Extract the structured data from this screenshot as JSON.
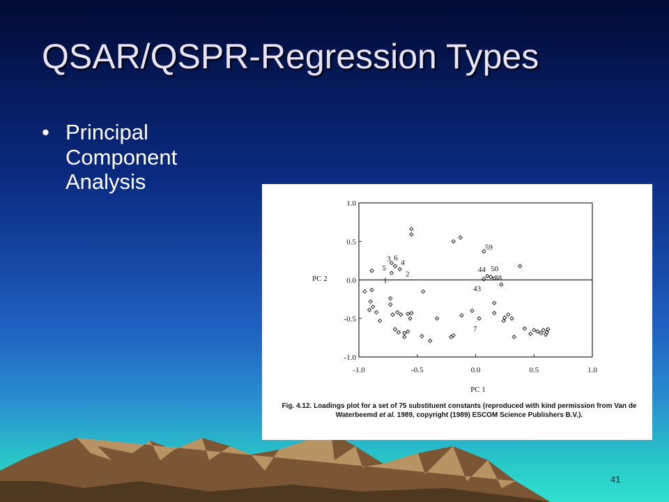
{
  "title": "QSAR/QSPR-Regression Types",
  "bullets": [
    "Principal Component Analysis"
  ],
  "page_number": "41",
  "chart_data": {
    "type": "scatter",
    "xlabel": "PC 1",
    "ylabel": "PC 2",
    "xlim": [
      -1.0,
      1.0
    ],
    "ylim": [
      -1.0,
      1.0
    ],
    "xticks": [
      {
        "value": -1.0,
        "label": "-1.0"
      },
      -0.5,
      {
        "value": 0.0,
        "label": "0.0"
      },
      0.5,
      {
        "value": 1.0,
        "label": "1.0"
      }
    ],
    "yticks": [
      {
        "value": -1.0,
        "label": "-1.0"
      },
      -0.5,
      {
        "value": 0.0,
        "label": "0.0"
      },
      0.5,
      {
        "value": 1.0,
        "label": "1.0"
      }
    ],
    "zero_line": true,
    "color": "#111111",
    "x": [
      -0.55,
      -0.55,
      -0.19,
      -0.13,
      0.07,
      -0.72,
      -0.69,
      -0.65,
      -0.72,
      0.38,
      0.1,
      0.13,
      0.07,
      0.16,
      0.22,
      -0.95,
      -0.89,
      -0.45,
      -0.9,
      -0.88,
      -0.91,
      -0.85,
      -0.82,
      -0.73,
      -0.73,
      -0.71,
      -0.67,
      -0.64,
      -0.58,
      -0.55,
      -0.56,
      -0.69,
      -0.66,
      -0.61,
      -0.61,
      -0.58,
      -0.46,
      -0.39,
      -0.33,
      -0.21,
      -0.19,
      -0.12,
      -0.03,
      0.03,
      0.16,
      0.16,
      0.24,
      0.25,
      0.28,
      0.31,
      0.33,
      0.42,
      0.47,
      0.5,
      0.53,
      0.56,
      0.58,
      0.61,
      0.62,
      0.6,
      -0.89
    ],
    "y": [
      0.66,
      0.59,
      0.5,
      0.55,
      0.37,
      0.22,
      0.18,
      0.14,
      0.09,
      0.18,
      0.05,
      0.04,
      0.01,
      0.02,
      -0.06,
      -0.15,
      -0.13,
      -0.15,
      -0.28,
      -0.35,
      -0.39,
      -0.42,
      -0.53,
      -0.24,
      -0.32,
      -0.45,
      -0.42,
      -0.45,
      -0.44,
      -0.43,
      -0.5,
      -0.64,
      -0.68,
      -0.69,
      -0.74,
      -0.67,
      -0.73,
      -0.79,
      -0.5,
      -0.74,
      -0.72,
      -0.46,
      -0.4,
      -0.5,
      -0.3,
      -0.43,
      -0.53,
      -0.49,
      -0.45,
      -0.5,
      -0.74,
      -0.63,
      -0.7,
      -0.65,
      -0.67,
      -0.69,
      -0.65,
      -0.68,
      -0.64,
      -0.71,
      0.12
    ],
    "annotations": [
      {
        "text": "3",
        "x": -0.76,
        "y": 0.28
      },
      {
        "text": "6",
        "x": -0.7,
        "y": 0.29
      },
      {
        "text": "5",
        "x": -0.8,
        "y": 0.16
      },
      {
        "text": "4",
        "x": -0.64,
        "y": 0.23
      },
      {
        "text": "1",
        "x": -0.79,
        "y": 0.0
      },
      {
        "text": "2",
        "x": -0.6,
        "y": 0.08
      },
      {
        "text": "59",
        "x": 0.08,
        "y": 0.43
      },
      {
        "text": "44",
        "x": 0.02,
        "y": 0.14
      },
      {
        "text": "50",
        "x": 0.13,
        "y": 0.15
      },
      {
        "text": "43",
        "x": -0.02,
        "y": -0.11
      },
      {
        "text": "38",
        "x": 0.16,
        "y": 0.03
      },
      {
        "text": "7",
        "x": -0.02,
        "y": -0.63
      }
    ]
  },
  "caption": {
    "label": "Fig. 4.12.",
    "text_before": "Loadings plot for a set of 75 substituent constants (reproduced with kind permission from Van de Waterbeemd",
    "italic": "et al.",
    "text_after": "1989, copyright (1989) ESCOM Science Publishers B.V.)."
  }
}
